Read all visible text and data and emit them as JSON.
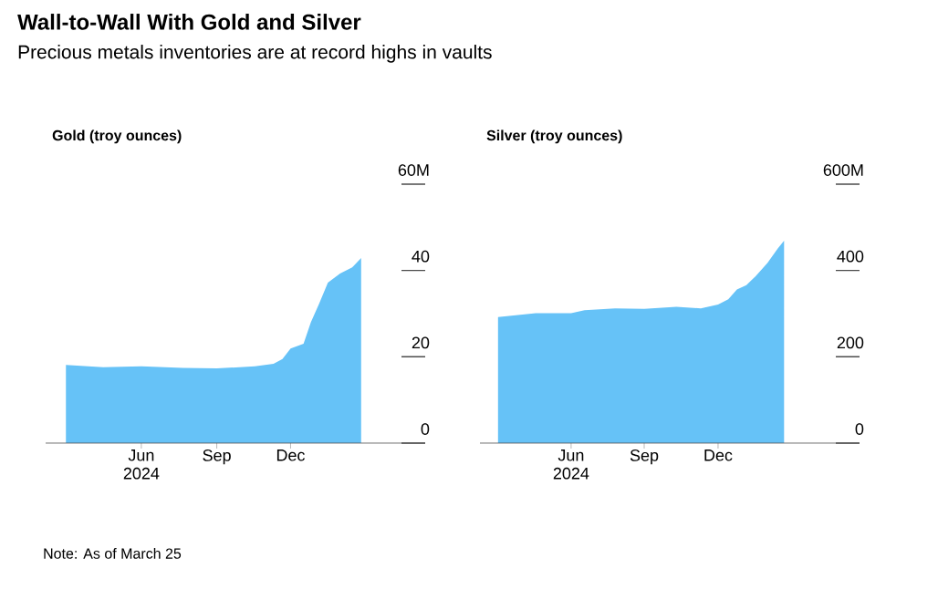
{
  "chart_data": [
    {
      "type": "area",
      "title": "Wall-to-Wall With Gold and Silver",
      "subtitle": "Precious metals inventories are at record highs in vaults",
      "ylabel": "Gold (troy ounces)",
      "annotations": [
        "Note: As of March 25"
      ],
      "x": [
        "2024-03-26",
        "2024-05-11",
        "2024-06-27",
        "2024-08-17",
        "2024-09-28",
        "2024-11-14",
        "2024-12-07",
        "2024-12-18",
        "2024-12-28",
        "2025-01-13",
        "2025-01-22",
        "2025-02-01",
        "2025-02-12",
        "2025-02-27",
        "2025-03-14",
        "2025-03-25"
      ],
      "values": [
        18.1,
        17.6,
        17.8,
        17.4,
        17.3,
        17.8,
        18.4,
        19.5,
        21.9,
        23.0,
        28.0,
        32.2,
        37.2,
        39.3,
        40.7,
        42.9
      ],
      "color": "#66c2f7",
      "xlim": [
        "2024-03-01",
        "2025-06-12"
      ],
      "xticks": [
        {
          "value": "2024-06-27",
          "label": "Jun 2024"
        },
        {
          "value": "2024-09-28",
          "label": "Sep"
        },
        {
          "value": "2024-12-28",
          "label": "Dec"
        }
      ],
      "ylim": [
        0,
        60
      ],
      "yticks": [
        0,
        20,
        40,
        {
          "value": 60,
          "label": "60M"
        }
      ],
      "grid": false
    },
    {
      "type": "area",
      "ylabel": "Silver (troy ounces)",
      "x": [
        "2024-03-26",
        "2024-05-13",
        "2024-06-27",
        "2024-07-14",
        "2024-08-22",
        "2024-09-28",
        "2024-11-08",
        "2024-12-09",
        "2024-12-31",
        "2025-01-13",
        "2025-01-24",
        "2025-02-05",
        "2025-02-17",
        "2025-03-04",
        "2025-03-17",
        "2025-03-25"
      ],
      "values": [
        292,
        301,
        301,
        308,
        312,
        311,
        316,
        312,
        321,
        333,
        356,
        366,
        387,
        418,
        451,
        469
      ],
      "color": "#66c2f7",
      "xlim": [
        "2024-03-03",
        "2025-06-29"
      ],
      "xticks": [
        {
          "value": "2024-06-27",
          "label": "Jun 2024"
        },
        {
          "value": "2024-09-28",
          "label": "Sep"
        },
        {
          "value": "2024-12-31",
          "label": "Dec"
        }
      ],
      "ylim": [
        0,
        600
      ],
      "yticks": [
        0,
        200,
        400,
        {
          "value": 600,
          "label": "600M"
        }
      ],
      "grid": false
    }
  ]
}
